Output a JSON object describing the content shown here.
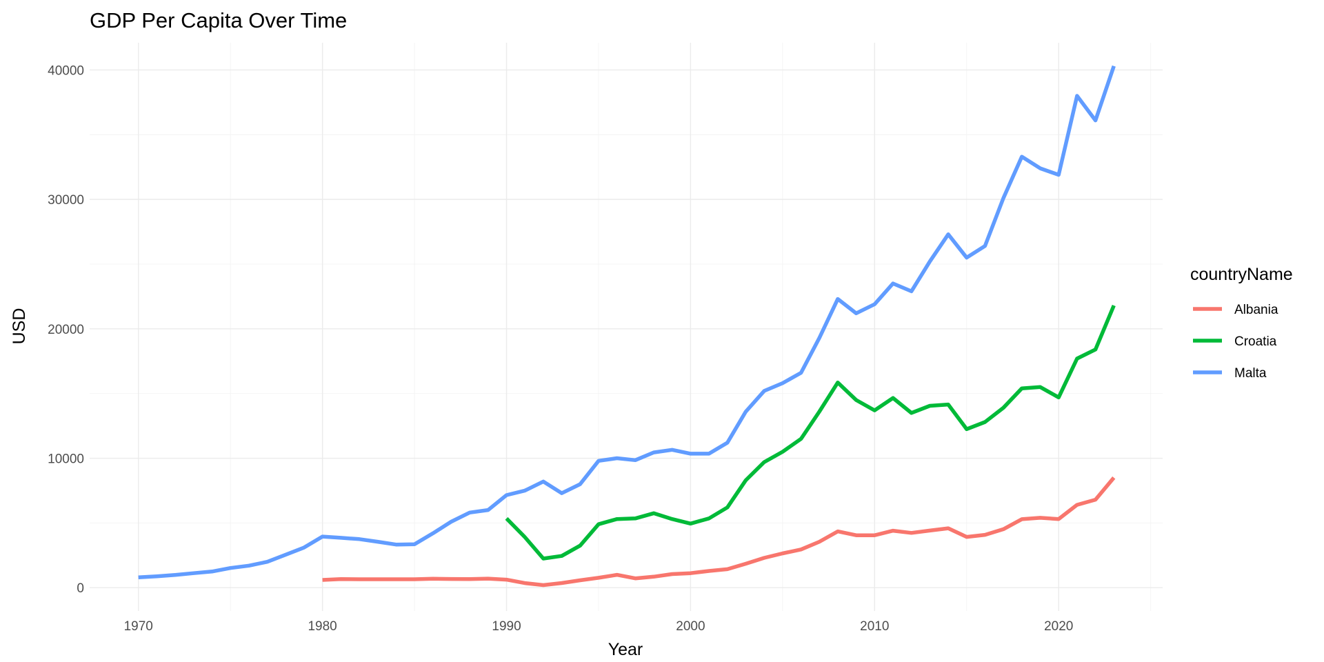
{
  "chart_data": {
    "type": "line",
    "title": "GDP Per Capita Over Time",
    "xlabel": "Year",
    "ylabel": "USD",
    "xlim": [
      1967.35,
      2025.65
    ],
    "ylim": [
      -1800,
      42100
    ],
    "x_ticks": [
      1970,
      1980,
      1990,
      2000,
      2010,
      2020
    ],
    "x_tick_labels": [
      "1970",
      "1980",
      "1990",
      "2000",
      "2010",
      "2020"
    ],
    "y_ticks": [
      0,
      10000,
      20000,
      30000,
      40000
    ],
    "y_tick_labels": [
      "0",
      "10000",
      "20000",
      "30000",
      "40000"
    ],
    "grid": true,
    "legend": {
      "title": "countryName",
      "position": "right"
    },
    "series": [
      {
        "name": "Albania",
        "color": "#F8766D",
        "x": [
          1980,
          1981,
          1982,
          1983,
          1984,
          1985,
          1986,
          1987,
          1988,
          1989,
          1990,
          1991,
          1992,
          1993,
          1994,
          1995,
          1996,
          1997,
          1998,
          1999,
          2000,
          2001,
          2002,
          2003,
          2004,
          2005,
          2006,
          2007,
          2008,
          2009,
          2010,
          2011,
          2012,
          2013,
          2014,
          2015,
          2016,
          2017,
          2018,
          2019,
          2020,
          2021,
          2022,
          2023
        ],
        "y": [
          600,
          660,
          650,
          650,
          650,
          650,
          690,
          670,
          660,
          700,
          620,
          350,
          200,
          360,
          570,
          760,
          990,
          720,
          850,
          1050,
          1120,
          1290,
          1430,
          1850,
          2300,
          2650,
          2950,
          3550,
          4350,
          4050,
          4050,
          4400,
          4230,
          4410,
          4590,
          3920,
          4080,
          4520,
          5290,
          5400,
          5300,
          6400,
          6800,
          8500
        ]
      },
      {
        "name": "Croatia",
        "color": "#00BA38",
        "x": [
          1990,
          1991,
          1992,
          1993,
          1994,
          1995,
          1996,
          1997,
          1998,
          1999,
          2000,
          2001,
          2002,
          2003,
          2004,
          2005,
          2006,
          2007,
          2008,
          2009,
          2010,
          2011,
          2012,
          2013,
          2014,
          2015,
          2016,
          2017,
          2018,
          2019,
          2020,
          2021,
          2022,
          2023
        ],
        "y": [
          5350,
          3900,
          2250,
          2450,
          3250,
          4900,
          5300,
          5350,
          5750,
          5300,
          4950,
          5350,
          6200,
          8300,
          9700,
          10500,
          11500,
          13600,
          15850,
          14500,
          13700,
          14650,
          13500,
          14050,
          14150,
          12250,
          12800,
          13900,
          15400,
          15500,
          14700,
          17700,
          18400,
          21800
        ]
      },
      {
        "name": "Malta",
        "color": "#619CFF",
        "x": [
          1970,
          1971,
          1972,
          1973,
          1974,
          1975,
          1976,
          1977,
          1978,
          1979,
          1980,
          1981,
          1982,
          1983,
          1984,
          1985,
          1986,
          1987,
          1988,
          1989,
          1990,
          1991,
          1992,
          1993,
          1994,
          1995,
          1996,
          1997,
          1998,
          1999,
          2000,
          2001,
          2002,
          2003,
          2004,
          2005,
          2006,
          2007,
          2008,
          2009,
          2010,
          2011,
          2012,
          2013,
          2014,
          2015,
          2016,
          2017,
          2018,
          2019,
          2020,
          2021,
          2022,
          2023
        ],
        "y": [
          800,
          880,
          980,
          1120,
          1250,
          1520,
          1700,
          2000,
          2550,
          3100,
          3950,
          3850,
          3750,
          3550,
          3330,
          3350,
          4200,
          5100,
          5800,
          6000,
          7150,
          7500,
          8200,
          7300,
          8000,
          9800,
          10000,
          9850,
          10450,
          10650,
          10350,
          10350,
          11200,
          13600,
          15200,
          15800,
          16600,
          19300,
          22300,
          21200,
          21900,
          23500,
          22900,
          25200,
          27300,
          25500,
          26400,
          30100,
          33300,
          32400,
          31900,
          38000,
          36100,
          40300
        ]
      }
    ]
  }
}
